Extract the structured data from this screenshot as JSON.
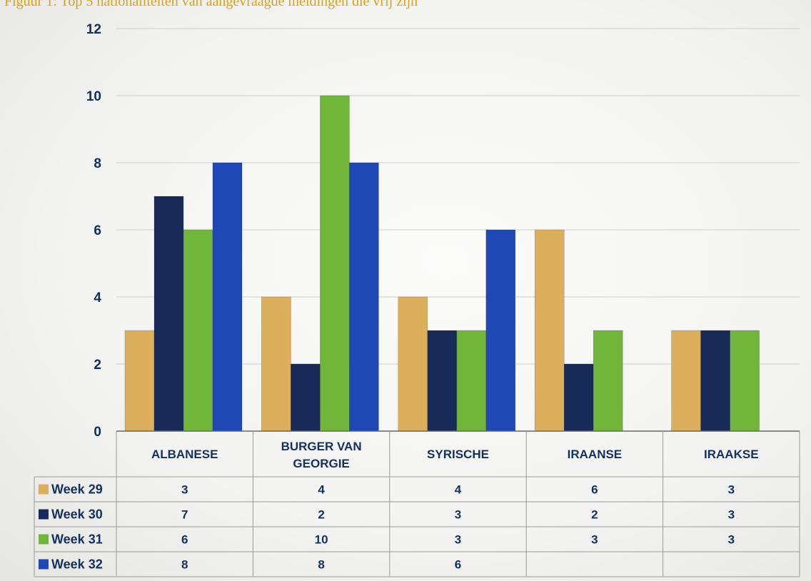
{
  "caption": "Figuur 1: Top 5 nationaliteiten van aangevraagde meldingen die vrij zijn",
  "chart_data": {
    "type": "bar",
    "categories": [
      "ALBANESE",
      "BURGER VAN GEORGIE",
      "SYRISCHE",
      "IRAANSE",
      "IRAAKSE"
    ],
    "category_lines": [
      [
        "ALBANESE"
      ],
      [
        "BURGER VAN",
        "GEORGIE"
      ],
      [
        "SYRISCHE"
      ],
      [
        "IRAANSE"
      ],
      [
        "IRAAKSE"
      ]
    ],
    "series": [
      {
        "name": "Week 29",
        "color": "#dcaf5c",
        "values": [
          3,
          4,
          4,
          6,
          3
        ]
      },
      {
        "name": "Week 30",
        "color": "#172a58",
        "values": [
          7,
          2,
          3,
          2,
          3
        ]
      },
      {
        "name": "Week 31",
        "color": "#6fb63a",
        "values": [
          6,
          10,
          3,
          3,
          3
        ]
      },
      {
        "name": "Week 32",
        "color": "#1f48b6",
        "values": [
          8,
          8,
          6,
          null,
          null
        ]
      }
    ],
    "y_ticks": [
      0,
      2,
      4,
      6,
      8,
      10,
      12
    ],
    "ylim": [
      0,
      12
    ],
    "grid": true,
    "legend": "data-table-left",
    "xlabel": "",
    "ylabel": "",
    "title": ""
  }
}
